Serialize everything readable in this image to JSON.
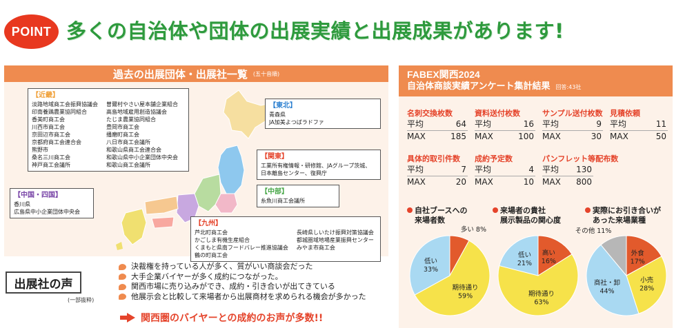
{
  "header": {
    "badge": "POINT",
    "headline": "多くの自治体や団体の出展実績と出展成果があります!"
  },
  "exhibitors": {
    "title": "過去の出展団体・出展社一覧",
    "subtitle": "(五十音順)",
    "regions": {
      "kinki": {
        "title": "【近畿】",
        "col1": [
          "淡路地域商工会振興協議会",
          "印南養鶏農業協同組合",
          "香美町商工会",
          "川西市商工会",
          "京田辺市商工会",
          "京都府商工会連合会",
          "熊野市",
          "桑名三川商工会",
          "神戸商工会議所"
        ],
        "col2": [
          "曽爾村やさい屋本舗企業組合",
          "高島地域雇用創造協議会",
          "たじま農業協同組合",
          "豊岡市商工会",
          "播磨町商工会",
          "八日市商工会議所",
          "和歌山県商工会連合会",
          "和歌山県中小企業団体中央会",
          "和歌山商工会議所"
        ]
      },
      "tohoku": {
        "title": "【東北】",
        "items": [
          "青森県",
          "JA加美よつばラドファ"
        ]
      },
      "kanto": {
        "title": "【関東】",
        "items": [
          "工業所有権情報・研修館、JAグループ茨城、",
          "日本離島センター、復興庁"
        ]
      },
      "chubu": {
        "title": "【中部】",
        "items": [
          "糸魚川商工会議所"
        ]
      },
      "chugoku": {
        "title": "【中国・四国】",
        "items": [
          "香川県",
          "広島県中小企業団体中央会"
        ]
      },
      "kyushu": {
        "title": "【九州】",
        "col1": [
          "芦北町商工会",
          "かごしま有機生産組合",
          "くまもと県南フードバレー推進協議会",
          "鶴の町商工会"
        ],
        "col2": [
          "長崎県しいたけ振興対策協議会",
          "都城圏域地場産業振興センター",
          "みやま市商工会"
        ]
      }
    }
  },
  "voice": {
    "title": "出展社の声",
    "note": "(一部抜粋)",
    "items": [
      "決裁権を持っている人が多く、質がいい商談会だった",
      "大手企業バイヤーが多く成約につながった。",
      "関西市場に売り込みができ、成約・引き合いが出てきている",
      "他展示会と比較して来場者から出展商材を求められる機会が多かった"
    ],
    "cta": "関西圏のバイヤーとの成約のお声が多数!!"
  },
  "survey": {
    "title1": "FABEX関西2024",
    "title2": "自治体商談実績アンケート集計結果",
    "respondents": "回答:43社",
    "stats": [
      {
        "label": "名刺交換枚数",
        "avg_label": "平均",
        "avg": "64",
        "max_label": "MAX",
        "max": "185"
      },
      {
        "label": "資料送付枚数",
        "avg_label": "平均",
        "avg": "16",
        "max_label": "MAX",
        "max": "100"
      },
      {
        "label": "サンプル送付枚数",
        "avg_label": "平均",
        "avg": "9",
        "max_label": "MAX",
        "max": "30"
      },
      {
        "label": "見積依頼",
        "avg_label": "平均",
        "avg": "11",
        "max_label": "MAX",
        "max": "50"
      },
      {
        "label": "具体的取引件数",
        "avg_label": "平均",
        "avg": "7",
        "max_label": "MAX",
        "max": "20"
      },
      {
        "label": "成約予定数",
        "avg_label": "平均",
        "avg": "4",
        "max_label": "MAX",
        "max": "10"
      },
      {
        "label": "パンフレット等配布数",
        "avg_label": "平均",
        "avg": "130",
        "max_label": "MAX",
        "max": "800"
      }
    ],
    "pie_titles": [
      [
        "自社ブースへの",
        "来場者数"
      ],
      [
        "来場者の貴社",
        "展示製品の関心度"
      ],
      [
        "実際にお引き合いが",
        "あった来場業種"
      ]
    ]
  },
  "chart_data": [
    {
      "type": "pie",
      "title": "自社ブースへの来場者数",
      "slices": [
        {
          "label": "多い",
          "value": 8,
          "color": "#e25a2c"
        },
        {
          "label": "期待通り",
          "value": 59,
          "color": "#f6e24a"
        },
        {
          "label": "低い",
          "value": 33,
          "color": "#a9d9f2"
        }
      ]
    },
    {
      "type": "pie",
      "title": "来場者の貴社展示製品の関心度",
      "slices": [
        {
          "label": "高い",
          "value": 16,
          "color": "#e25a2c"
        },
        {
          "label": "期待通り",
          "value": 63,
          "color": "#f6e24a"
        },
        {
          "label": "低い",
          "value": 21,
          "color": "#a9d9f2"
        }
      ]
    },
    {
      "type": "pie",
      "title": "実際にお引き合いがあった来場業種",
      "slices": [
        {
          "label": "外食",
          "value": 17,
          "color": "#e25a2c"
        },
        {
          "label": "小売",
          "value": 28,
          "color": "#f6e24a"
        },
        {
          "label": "商社・卸",
          "value": 44,
          "color": "#a9d9f2"
        },
        {
          "label": "その他",
          "value": 11,
          "color": "#b7b7b7"
        }
      ]
    }
  ]
}
